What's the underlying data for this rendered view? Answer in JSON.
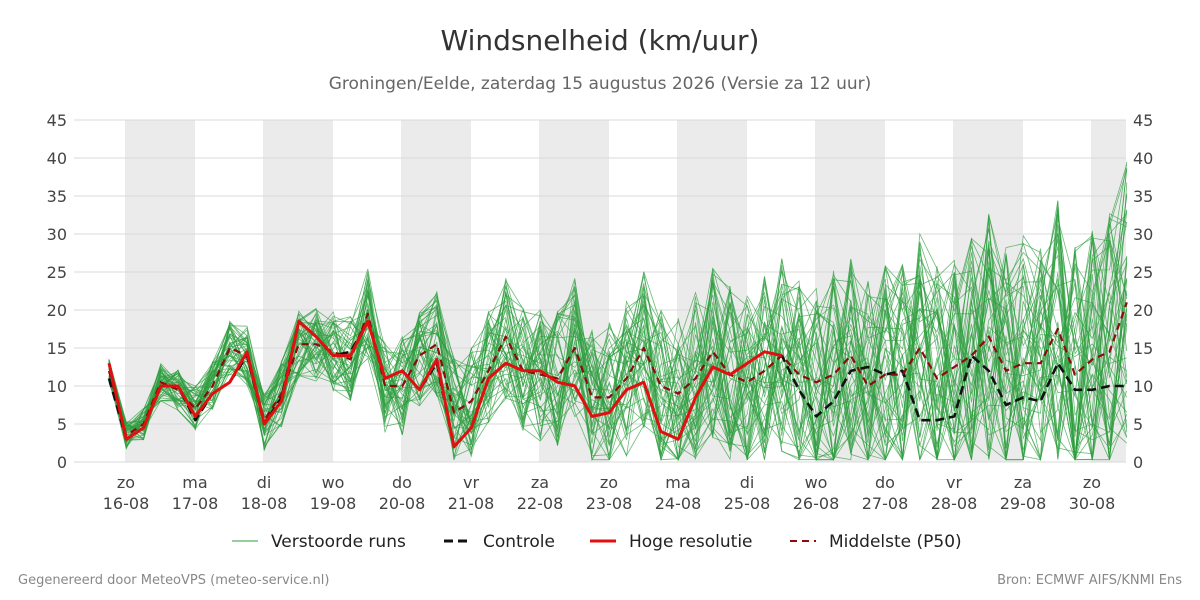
{
  "chart_data": {
    "type": "line",
    "title": "Windsnelheid (km/uur)",
    "subtitle": "Groningen/Eelde, zaterdag 15 augustus 2026 (Versie za 12 uur)",
    "ylim": [
      0,
      45
    ],
    "yticks": [
      0,
      5,
      10,
      15,
      20,
      25,
      30,
      35,
      40,
      45
    ],
    "x_day_ticks": [
      {
        "day": "zo",
        "date": "16-08"
      },
      {
        "day": "ma",
        "date": "17-08"
      },
      {
        "day": "di",
        "date": "18-08"
      },
      {
        "day": "wo",
        "date": "19-08"
      },
      {
        "day": "do",
        "date": "20-08"
      },
      {
        "day": "vr",
        "date": "21-08"
      },
      {
        "day": "za",
        "date": "22-08"
      },
      {
        "day": "zo",
        "date": "23-08"
      },
      {
        "day": "ma",
        "date": "24-08"
      },
      {
        "day": "di",
        "date": "25-08"
      },
      {
        "day": "wo",
        "date": "26-08"
      },
      {
        "day": "do",
        "date": "27-08"
      },
      {
        "day": "vr",
        "date": "28-08"
      },
      {
        "day": "za",
        "date": "29-08"
      },
      {
        "day": "zo",
        "date": "30-08"
      }
    ],
    "legend": {
      "placement": "bottom",
      "entries": [
        "Verstoorde runs",
        "Controle",
        "Hoge resolutie",
        "Middelste (P50)"
      ]
    },
    "colors": {
      "ensemble": "#2e9e3e",
      "control": "#111111",
      "hires": "#e01010",
      "p50": "#8b0c0c",
      "shade": "#ebebeb",
      "grid": "#d9d9d9"
    },
    "series": [
      {
        "name": "Controle",
        "style": "dashed",
        "values": [
          11,
          3,
          4.5,
          10,
          10,
          5.5,
          9,
          10.5,
          14,
          5,
          8.5,
          18.5,
          16.5,
          14,
          14.5,
          18.5,
          11,
          12,
          9.5,
          13,
          2,
          4.5,
          11,
          13,
          12,
          12,
          10.5,
          10,
          6,
          6.5,
          9.5,
          10.5,
          4,
          3,
          8.5,
          12.5,
          11.5,
          13,
          14.5,
          14,
          9.5,
          6,
          8,
          12,
          12.5,
          11.5,
          12,
          5.5,
          5.5,
          6,
          14,
          12,
          7.5,
          8.5,
          8,
          13,
          9.5,
          9.5,
          10,
          10
        ]
      },
      {
        "name": "Hoge resolutie",
        "style": "solid",
        "values": [
          13,
          3,
          4.5,
          10,
          10,
          6,
          9,
          10.5,
          14.5,
          5,
          8,
          18.5,
          16.5,
          14,
          14,
          18.5,
          11,
          12,
          9.5,
          13.5,
          2,
          4.5,
          11,
          13,
          12,
          12,
          10.5,
          10,
          6,
          6.5,
          9.5,
          10.5,
          4,
          3,
          8.5,
          12.5,
          11.5,
          13,
          14.5,
          14
        ]
      },
      {
        "name": "Middelste (P50)",
        "style": "dashed",
        "values": [
          12,
          3.5,
          5,
          10.5,
          9.5,
          7,
          10,
          15,
          14,
          5.5,
          9,
          15.5,
          15.5,
          14.5,
          13.5,
          19.5,
          10,
          10,
          14,
          15.5,
          6.5,
          8,
          12,
          16.5,
          12,
          11.5,
          11,
          15,
          8.5,
          8.5,
          11,
          15,
          10,
          9,
          11,
          14.5,
          11.5,
          10.5,
          12,
          14,
          11.5,
          10.5,
          11.5,
          14,
          10,
          11.5,
          11.5,
          15,
          11,
          12.5,
          14,
          16.5,
          12,
          13,
          13,
          17.5,
          11.5,
          13.5,
          14.5,
          21
        ]
      }
    ]
  },
  "footer": {
    "left": "Gegenereerd door MeteoVPS (meteo-service.nl)",
    "right": "Bron: ECMWF AIFS/KNMI Ens"
  }
}
